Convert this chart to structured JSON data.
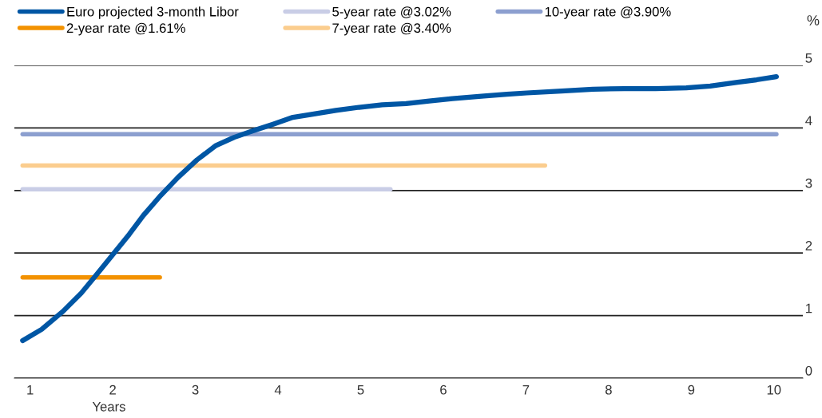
{
  "chart_data": {
    "type": "line",
    "xlabel": "Years",
    "ylabel": "%",
    "series": [
      {
        "name": "Euro projected 3-month Libor",
        "color": "#0056a4",
        "x": [
          0.91,
          1.14,
          1.4,
          1.62,
          1.82,
          2.01,
          2.2,
          2.37,
          2.58,
          2.79,
          3.02,
          3.25,
          3.47,
          3.71,
          3.94,
          4.18,
          4.42,
          4.7,
          4.98,
          5.26,
          5.55,
          5.83,
          6.11,
          6.49,
          6.77,
          7.01,
          7.43,
          7.81,
          8.19,
          8.57,
          8.94,
          9.23,
          9.56,
          9.79,
          10.03
        ],
        "values": [
          0.6,
          0.78,
          1.07,
          1.36,
          1.68,
          1.99,
          2.3,
          2.6,
          2.92,
          3.21,
          3.49,
          3.72,
          3.85,
          3.96,
          4.06,
          4.17,
          4.22,
          4.28,
          4.33,
          4.37,
          4.39,
          4.43,
          4.47,
          4.51,
          4.54,
          4.56,
          4.59,
          4.62,
          4.63,
          4.63,
          4.64,
          4.67,
          4.73,
          4.77,
          4.82
        ]
      },
      {
        "name": "2-year rate @1.61%",
        "color": "#f39200",
        "x": [
          0.91,
          2.57
        ],
        "values": [
          1.61,
          1.61
        ]
      },
      {
        "name": "5-year rate @3.02%",
        "color": "#c9cde6",
        "x": [
          0.91,
          5.36
        ],
        "values": [
          3.02,
          3.02
        ]
      },
      {
        "name": "7-year rate @3.40%",
        "color": "#fbcd8e",
        "x": [
          0.91,
          7.23
        ],
        "values": [
          3.4,
          3.4
        ]
      },
      {
        "name": "10-year rate @3.90%",
        "color": "#8c9fcf",
        "x": [
          0.91,
          10.03
        ],
        "values": [
          3.9,
          3.9
        ]
      }
    ],
    "xlim": [
      0.81,
      10.35
    ],
    "xticks": [
      1,
      2,
      3,
      4,
      5,
      6,
      7,
      8,
      9,
      10
    ],
    "ylim": [
      0,
      5
    ],
    "yticks": [
      0,
      1,
      2,
      3,
      4,
      5
    ],
    "grid": "y",
    "legend": "top",
    "marker": "none",
    "line_style": "solid"
  }
}
